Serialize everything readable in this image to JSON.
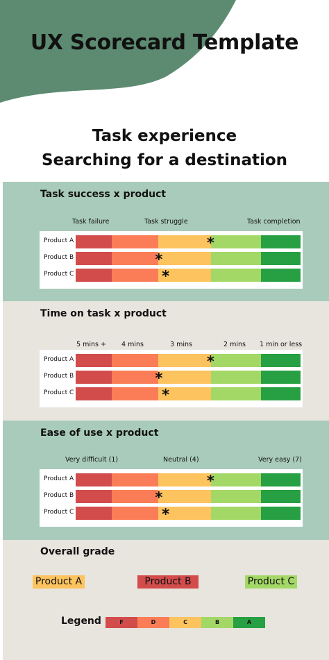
{
  "colors": {
    "f": "#d24c4c",
    "d": "#fa7d57",
    "c": "#fdc35e",
    "b": "#a4d866",
    "a": "#27a043",
    "header_blob": "#5d8b71",
    "section_green": "#a9cbbb",
    "section_beige": "#e8e4de"
  },
  "header": {
    "title": "UX Scorecard Template",
    "subtitle_line1": "Task experience",
    "subtitle_line2": "Searching for a destination"
  },
  "sections": [
    {
      "title": "Task success x product",
      "scale": [
        "Task failure",
        "Task struggle",
        "Task completion"
      ],
      "rows": [
        {
          "label": "Product A",
          "marker": 0.6
        },
        {
          "label": "Product B",
          "marker": 0.37
        },
        {
          "label": "Product C",
          "marker": 0.4
        }
      ]
    },
    {
      "title": "Time on task x product",
      "scale": [
        "5 mins +",
        "4 mins",
        "3 mins",
        "2 mins",
        "1 min or less"
      ],
      "rows": [
        {
          "label": "Product A",
          "marker": 0.6
        },
        {
          "label": "Product B",
          "marker": 0.37
        },
        {
          "label": "Product C",
          "marker": 0.4
        }
      ]
    },
    {
      "title": "Ease of use x product",
      "scale": [
        "Very difficult (1)",
        "Neutral (4)",
        "Very easy (7)"
      ],
      "rows": [
        {
          "label": "Product A",
          "marker": 0.6
        },
        {
          "label": "Product B",
          "marker": 0.37
        },
        {
          "label": "Product C",
          "marker": 0.4
        }
      ]
    }
  ],
  "overall": {
    "title": "Overall grade",
    "grades": [
      {
        "label": "Product A",
        "color": "#fdc35e"
      },
      {
        "label": "Product B",
        "color": "#d24c4c"
      },
      {
        "label": "Product C",
        "color": "#a4d866"
      }
    ]
  },
  "legend": {
    "title": "Legend",
    "items": [
      {
        "label": "F",
        "color": "#d24c4c"
      },
      {
        "label": "D",
        "color": "#fa7d57"
      },
      {
        "label": "C",
        "color": "#fdc35e"
      },
      {
        "label": "B",
        "color": "#a4d866"
      },
      {
        "label": "A",
        "color": "#27a043"
      }
    ]
  }
}
